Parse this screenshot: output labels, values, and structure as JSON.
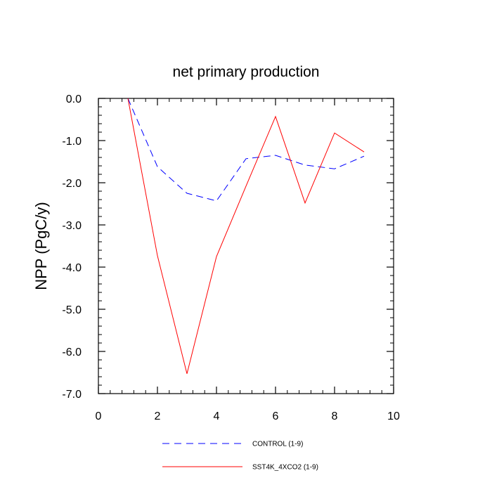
{
  "chart_data": {
    "type": "line",
    "title": "net primary production",
    "xlabel": "",
    "ylabel": "NPP  (PgC/y)",
    "xlim": [
      0,
      10
    ],
    "ylim": [
      -7.0,
      0.0
    ],
    "x_ticks": [
      0,
      2,
      4,
      6,
      8,
      10
    ],
    "x_tick_labels": [
      "0",
      "2",
      "4",
      "6",
      "8",
      "10"
    ],
    "y_ticks": [
      0,
      -1,
      -2,
      -3,
      -4,
      -5,
      -6,
      -7
    ],
    "y_tick_labels": [
      "0.0",
      "-1.0",
      "-2.0",
      "-3.0",
      "-4.0",
      "-5.0",
      "-6.0",
      "-7.0"
    ],
    "grid": false,
    "legend_position": "bottom",
    "x": [
      1,
      2,
      3,
      4,
      5,
      6,
      7,
      8,
      9
    ],
    "series": [
      {
        "name": "CONTROL (1-9)",
        "color": "#0000ff",
        "dash": "dashed",
        "values": [
          0.0,
          -1.62,
          -2.25,
          -2.43,
          -1.43,
          -1.35,
          -1.58,
          -1.67,
          -1.37
        ]
      },
      {
        "name": "SST4K_4XCO2 (1-9)",
        "color": "#ff0000",
        "dash": "solid",
        "values": [
          0.0,
          -3.73,
          -6.53,
          -3.75,
          -2.08,
          -0.43,
          -2.48,
          -0.82,
          -1.27
        ]
      }
    ]
  }
}
